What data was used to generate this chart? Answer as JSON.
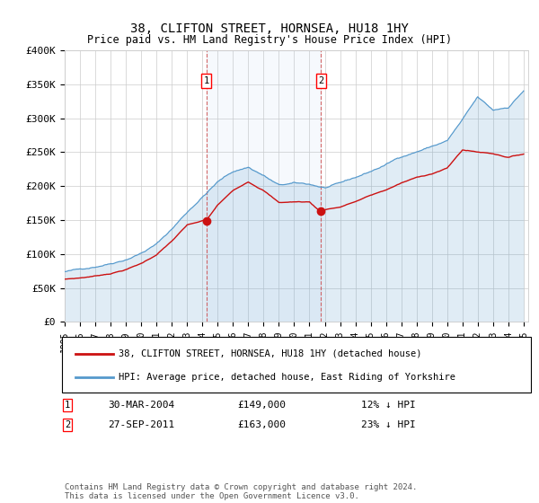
{
  "title": "38, CLIFTON STREET, HORNSEA, HU18 1HY",
  "subtitle": "Price paid vs. HM Land Registry's House Price Index (HPI)",
  "hpi_color": "#5599cc",
  "price_color": "#cc1111",
  "ylim": [
    0,
    400000
  ],
  "yticks": [
    0,
    50000,
    100000,
    150000,
    200000,
    250000,
    300000,
    350000,
    400000
  ],
  "ytick_labels": [
    "£0",
    "£50K",
    "£100K",
    "£150K",
    "£200K",
    "£250K",
    "£300K",
    "£350K",
    "£400K"
  ],
  "legend_line1": "38, CLIFTON STREET, HORNSEA, HU18 1HY (detached house)",
  "legend_line2": "HPI: Average price, detached house, East Riding of Yorkshire",
  "annotation1_label": "1",
  "annotation1_date": "30-MAR-2004",
  "annotation1_price": "£149,000",
  "annotation1_pct": "12% ↓ HPI",
  "annotation2_label": "2",
  "annotation2_date": "27-SEP-2011",
  "annotation2_price": "£163,000",
  "annotation2_pct": "23% ↓ HPI",
  "footer": "Contains HM Land Registry data © Crown copyright and database right 2024.\nThis data is licensed under the Open Government Licence v3.0.",
  "point1_x": 2004.25,
  "point1_y": 149000,
  "point2_x": 2011.75,
  "point2_y": 163000,
  "xlim": [
    1995,
    2025.3
  ]
}
